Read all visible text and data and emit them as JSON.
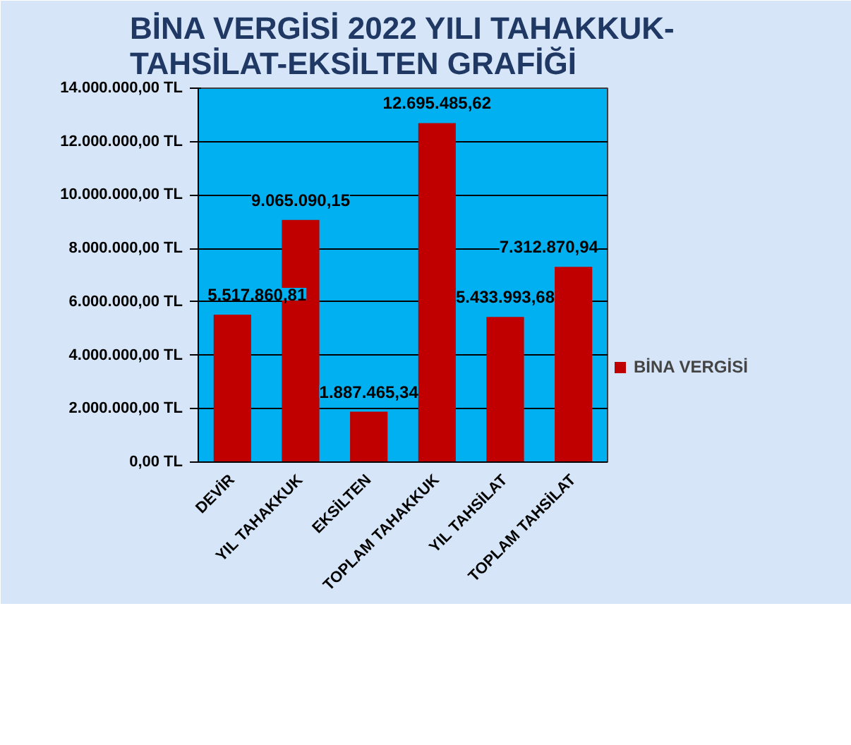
{
  "chart_data": {
    "type": "bar",
    "title": "BİNA VERGİSİ 2022 YILI TAHAKKUK-\nTAHSİLAT-EKSİLTEN GRAFİĞİ",
    "categories": [
      "DEVİR",
      "YIL TAHAKKUK",
      "EKSİLTEN",
      "TOPLAM TAHAKKUK",
      "YIL TAHSİLAT",
      "TOPLAM TAHSİLAT"
    ],
    "series": [
      {
        "name": "BİNA VERGİSİ",
        "color": "#c00000",
        "values": [
          5517860.81,
          9065090.15,
          1887465.34,
          12695485.62,
          5433993.68,
          7312870.94
        ],
        "value_labels": [
          "5.517.860,81",
          "9.065.090,15",
          "1.887.465,34",
          "12.695.485,62",
          "5.433.993,68",
          "7.312.870,94"
        ]
      }
    ],
    "ylim": [
      0,
      14000000
    ],
    "yticks": [
      {
        "value": 0,
        "label": "0,00 TL"
      },
      {
        "value": 2000000,
        "label": "2.000.000,00 TL"
      },
      {
        "value": 4000000,
        "label": "4.000.000,00 TL"
      },
      {
        "value": 6000000,
        "label": "6.000.000,00 TL"
      },
      {
        "value": 8000000,
        "label": "8.000.000,00 TL"
      },
      {
        "value": 10000000,
        "label": "10.000.000,00 TL"
      },
      {
        "value": 12000000,
        "label": "12.000.000,00 TL"
      },
      {
        "value": 14000000,
        "label": "14.000.000,00 TL"
      }
    ],
    "grid": "y",
    "legend": "right"
  }
}
